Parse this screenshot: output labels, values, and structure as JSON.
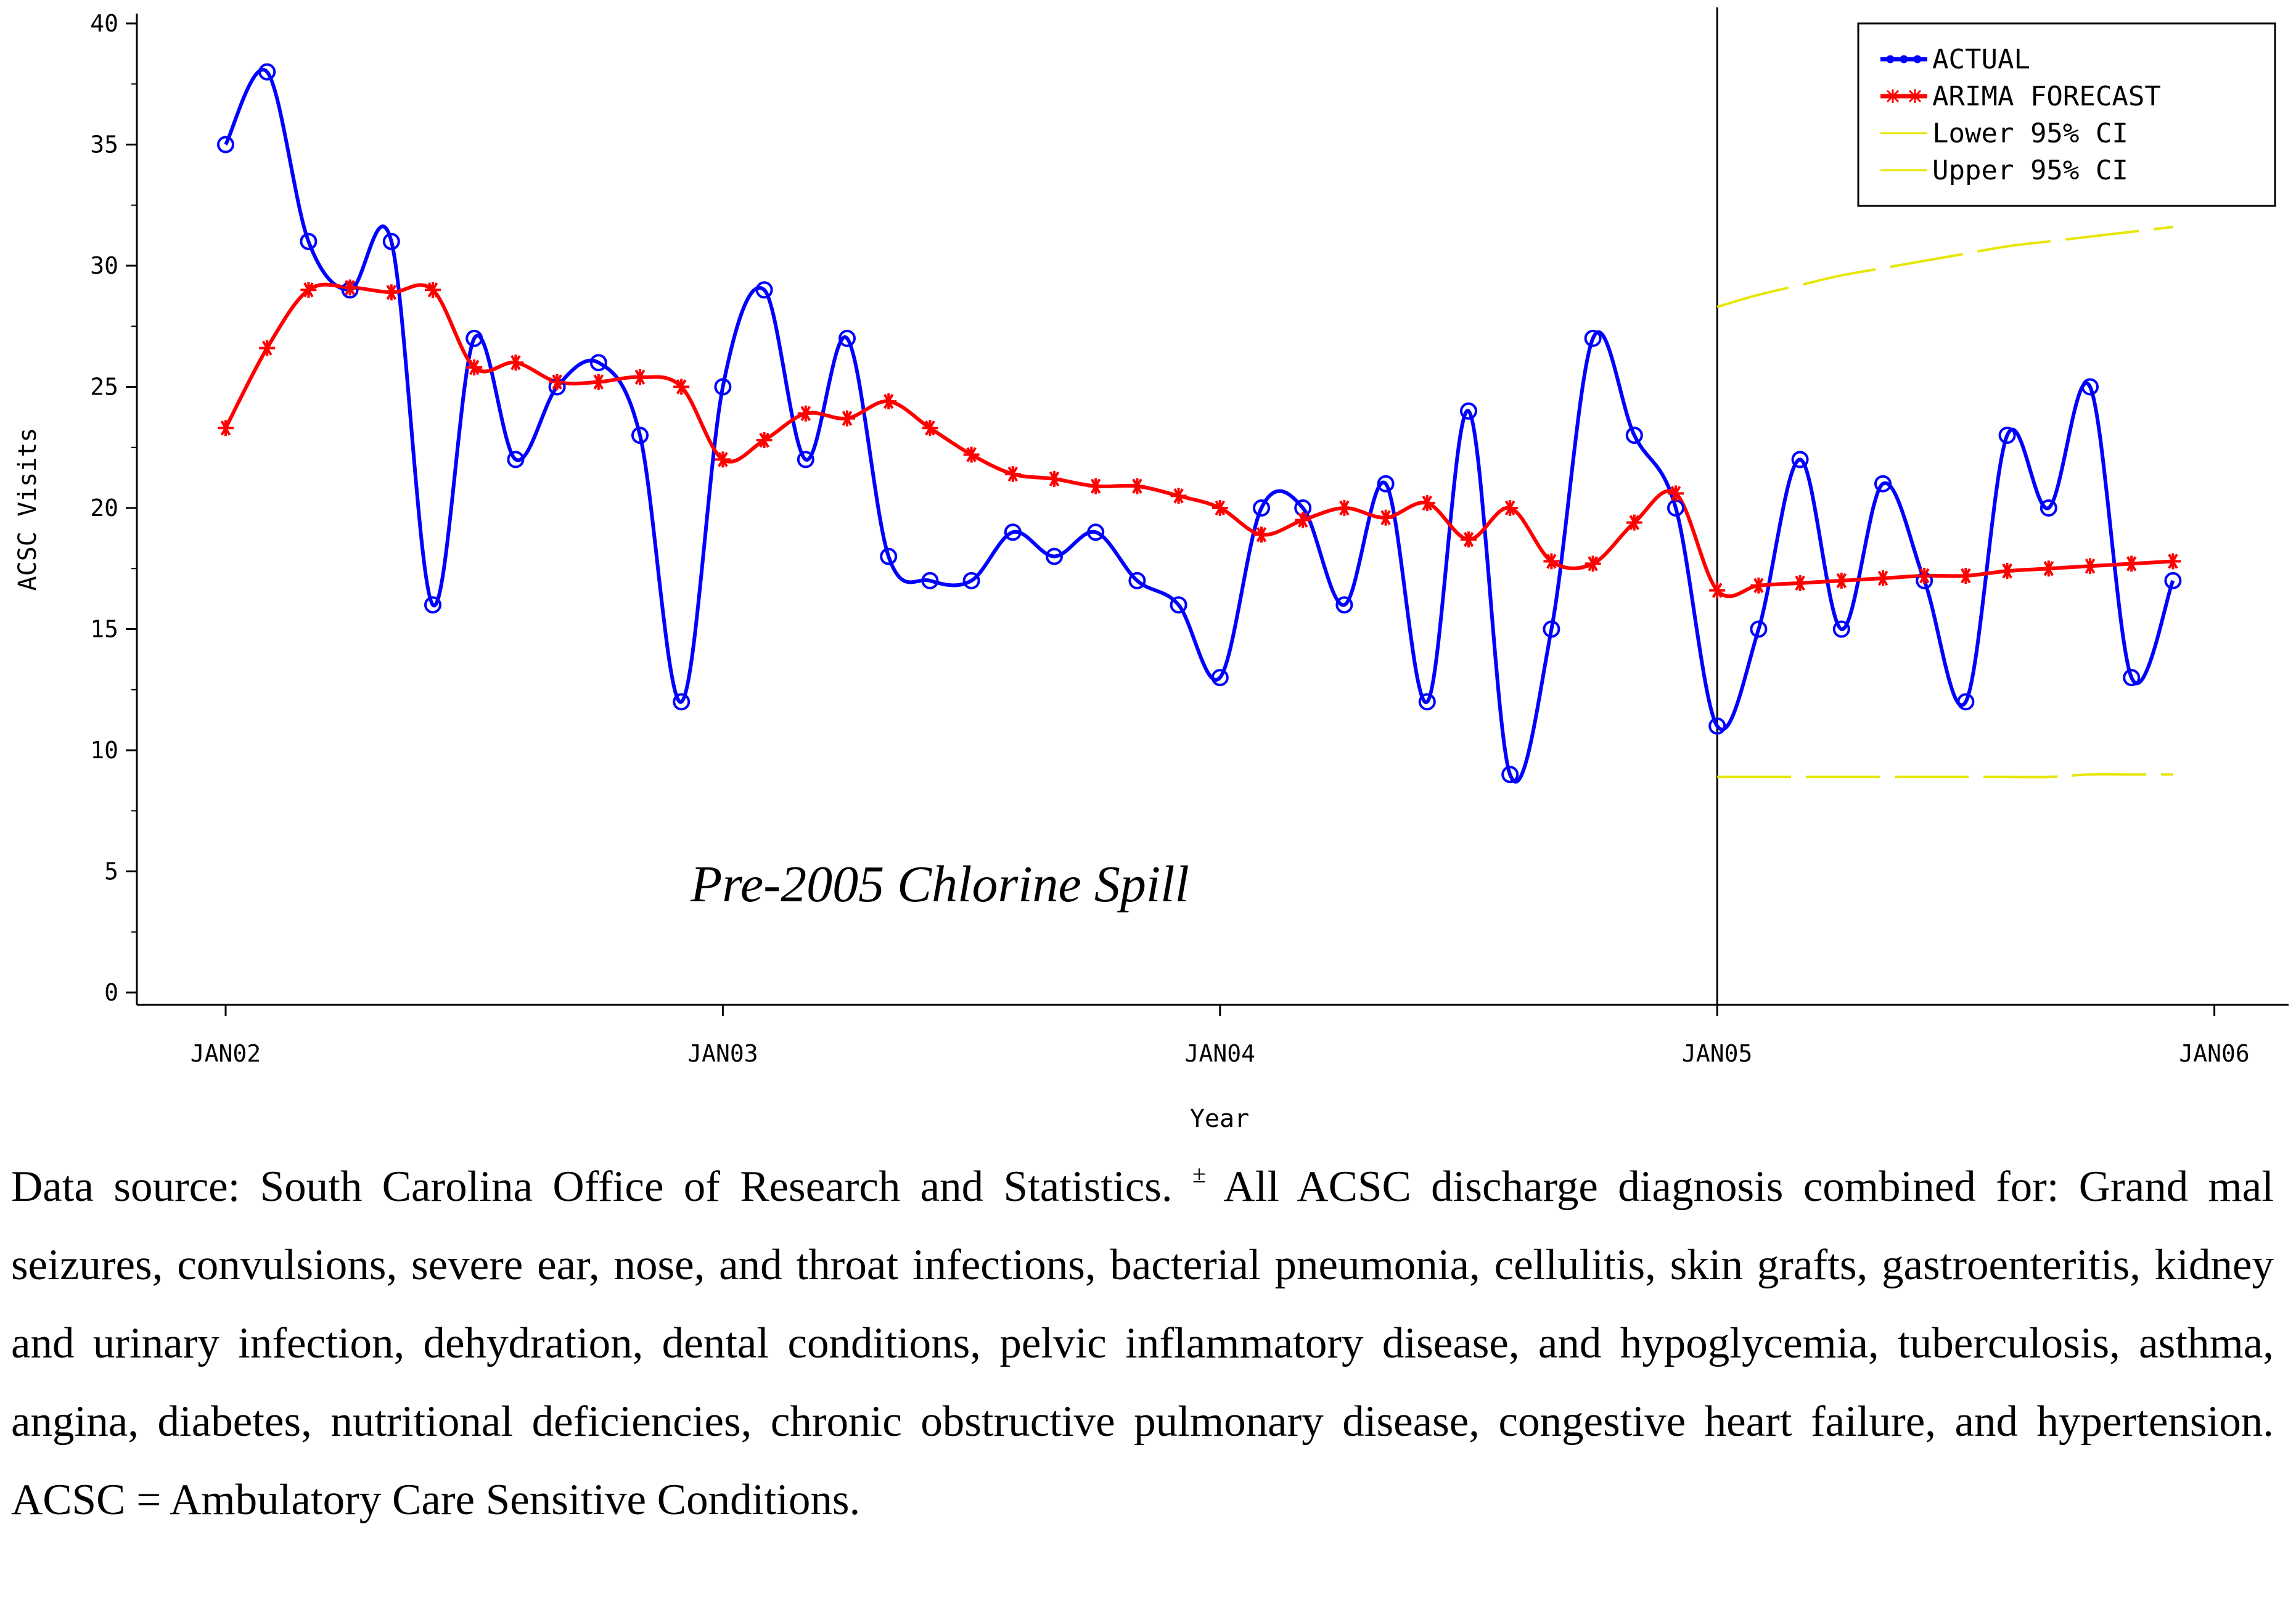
{
  "chart_data": {
    "type": "line",
    "xlabel": "Year",
    "ylabel": "ACSC Visits",
    "ylim": [
      0,
      40
    ],
    "y_ticks": [
      "0",
      "5",
      "10",
      "15",
      "20",
      "25",
      "30",
      "35",
      "40"
    ],
    "x_ticks": [
      "JAN02",
      "JAN03",
      "JAN04",
      "JAN05",
      "JAN06"
    ],
    "x_start": "JAN02",
    "annotation": "Pre-2005 Chlorine Spill",
    "forecast_start": "JAN05",
    "legend_position": "top-right",
    "series": [
      {
        "name": "ACTUAL",
        "color": "#0000ff",
        "marker": "circle",
        "values": [
          35,
          38,
          31,
          29,
          31,
          16,
          27,
          22,
          25,
          26,
          23,
          12,
          25,
          29,
          22,
          27,
          18,
          17,
          17,
          19,
          18,
          19,
          17,
          16,
          13,
          20,
          20,
          16,
          21,
          12,
          24,
          9,
          15,
          27,
          23,
          20,
          11,
          15,
          22,
          15,
          21,
          17,
          12,
          23,
          20,
          25,
          13,
          17
        ]
      },
      {
        "name": "ARIMA FORECAST",
        "color": "#ff0000",
        "marker": "star",
        "values": [
          23.3,
          26.6,
          29.0,
          29.1,
          28.9,
          29.0,
          25.8,
          26.0,
          25.2,
          25.2,
          25.4,
          25.0,
          22.0,
          22.8,
          23.9,
          23.7,
          24.4,
          23.3,
          22.2,
          21.4,
          21.2,
          20.9,
          20.9,
          20.5,
          20.0,
          18.9,
          19.5,
          20.0,
          19.6,
          20.2,
          18.7,
          20.0,
          17.8,
          17.7,
          19.4,
          20.6,
          16.6,
          16.8,
          16.9,
          17.0,
          17.1,
          17.2,
          17.2,
          17.4,
          17.5,
          17.6,
          17.7,
          17.8
        ]
      },
      {
        "name": "Lower 95% CI",
        "color": "#e6e600",
        "dashed": true,
        "start_index": 36,
        "values": [
          8.9,
          8.9,
          8.9,
          8.9,
          8.9,
          8.9,
          8.9,
          8.9,
          8.9,
          9.0,
          9.0,
          9.0
        ]
      },
      {
        "name": "Upper 95% CI",
        "color": "#e6e600",
        "dashed": true,
        "start_index": 36,
        "values": [
          28.3,
          28.8,
          29.2,
          29.6,
          29.9,
          30.2,
          30.5,
          30.8,
          31.0,
          31.2,
          31.4,
          31.6
        ]
      }
    ]
  },
  "caption": {
    "source": "Data source: South Carolina Office of Research and Statistics.",
    "symbol": "±",
    "text": "All ACSC discharge diagnosis combined for: Grand mal seizures, convulsions, severe ear, nose, and throat infections, bacterial pneumonia, cellulitis, skin grafts, gastroenteritis, kidney and urinary infection, dehydration, dental conditions, pelvic inflammatory disease, and hypoglycemia, tuberculosis, asthma, angina, diabetes, nutritional deficiencies, chronic obstructive pulmonary disease, congestive heart failure, and hypertension. ACSC = Ambulatory Care Sensitive Conditions."
  }
}
